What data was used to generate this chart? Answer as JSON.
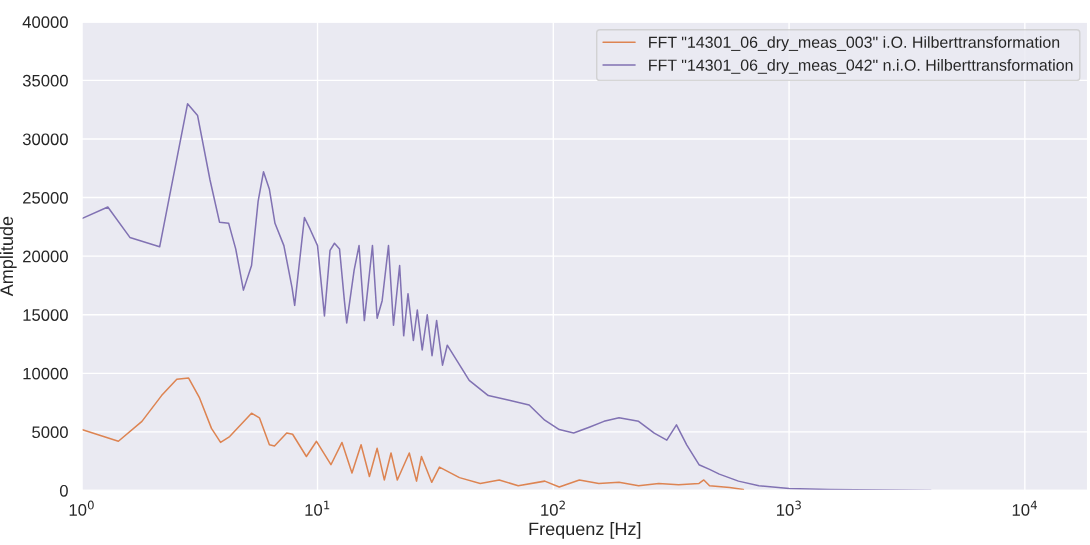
{
  "chart_data": {
    "type": "line",
    "xlabel": "Frequenz [Hz]",
    "ylabel": "Amplitude",
    "log": "x",
    "grid": true,
    "legend": "top right",
    "xlim": [
      1,
      18500
    ],
    "ylim": [
      0,
      40000
    ],
    "xticks": [
      {
        "value": 1,
        "label": "10$^{0}$"
      },
      {
        "value": 10,
        "label": "10$^{1}$"
      },
      {
        "value": 100,
        "label": "10$^{2}$"
      },
      {
        "value": 1000,
        "label": "10$^{3}$"
      },
      {
        "value": 10000,
        "label": "10$^{4}$"
      }
    ],
    "yticks": [
      0,
      5000,
      10000,
      15000,
      20000,
      25000,
      30000,
      35000,
      40000
    ],
    "series": [
      {
        "name": "FFT \"14301_06_dry_meas_003\" i.O. Hilberttransformation",
        "color": "#dd8452",
        "x": [
          1,
          1.43,
          1.8,
          2.18,
          2.53,
          2.84,
          3.16,
          3.55,
          3.88,
          4.24,
          5.25,
          5.67,
          6.25,
          6.57,
          7.4,
          7.84,
          8.97,
          9.9,
          11.4,
          12.7,
          14,
          15.3,
          16.6,
          17.9,
          19.2,
          20.5,
          21.8,
          24.5,
          26.3,
          27.6,
          30.5,
          32.9,
          40,
          49,
          59,
          71,
          92,
          106,
          129,
          156,
          190,
          230,
          280,
          340,
          415,
          435,
          460,
          560,
          640
        ],
        "values": [
          5200,
          4200,
          5900,
          8100,
          9500,
          9600,
          7900,
          5300,
          4100,
          4600,
          6600,
          6200,
          3900,
          3800,
          4900,
          4800,
          2900,
          4200,
          2200,
          4100,
          1500,
          3900,
          1200,
          3600,
          900,
          3200,
          900,
          3200,
          800,
          2900,
          700,
          2000,
          1100,
          600,
          900,
          400,
          800,
          300,
          900,
          600,
          700,
          400,
          600,
          500,
          600,
          900,
          400,
          250,
          80
        ]
      },
      {
        "name": "FFT \"14301_06_dry_meas_042\" n.i.O. Hilberttransformation",
        "color": "#8172b3",
        "x": [
          1,
          1.29,
          1.6,
          2.14,
          2.81,
          3.1,
          3.5,
          3.84,
          4.2,
          4.5,
          4.85,
          5.25,
          5.6,
          5.9,
          6.25,
          6.6,
          7.2,
          7.8,
          8.0,
          8.8,
          9.3,
          10,
          10.7,
          11.3,
          11.8,
          12.4,
          13,
          13.3,
          14.3,
          15,
          15.8,
          17.1,
          17.9,
          18.8,
          20,
          21,
          22.3,
          23.2,
          24.2,
          25.5,
          26.5,
          27.8,
          29.2,
          30.6,
          32,
          33.9,
          35.5,
          44,
          53,
          65,
          79,
          92,
          106,
          122,
          142,
          164,
          190,
          230,
          268,
          303,
          333,
          368,
          415,
          460,
          506,
          610,
          745,
          1000,
          1480,
          4000
        ],
        "values": [
          23200,
          24200,
          21600,
          20800,
          33000,
          32000,
          26500,
          22900,
          22800,
          20600,
          17100,
          19200,
          24700,
          27200,
          25700,
          22800,
          20900,
          17300,
          15800,
          23300,
          22300,
          20900,
          14900,
          20500,
          21100,
          20600,
          16200,
          14300,
          18800,
          20900,
          14500,
          20900,
          14700,
          16200,
          20900,
          14100,
          19200,
          13200,
          16800,
          12800,
          15400,
          12000,
          15000,
          11500,
          14500,
          10700,
          12400,
          9400,
          8100,
          7700,
          7300,
          6000,
          5200,
          4900,
          5400,
          5900,
          6200,
          5900,
          4900,
          4300,
          5600,
          3900,
          2200,
          1800,
          1400,
          800,
          400,
          170,
          80,
          0
        ]
      }
    ]
  }
}
